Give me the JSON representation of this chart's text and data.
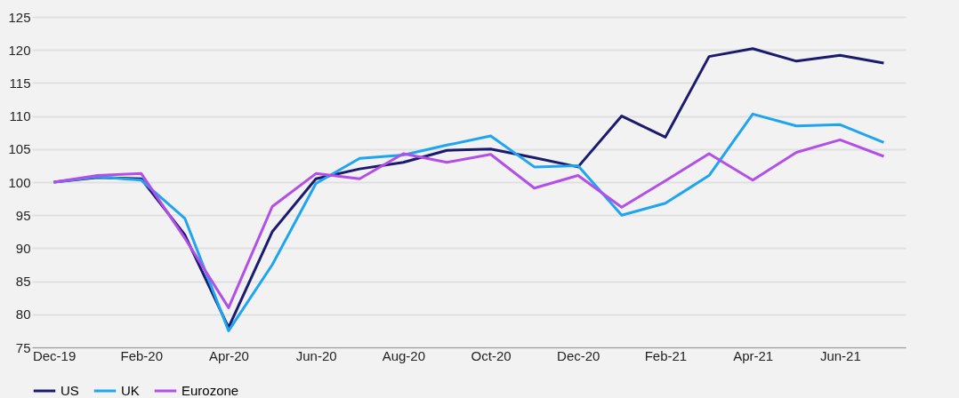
{
  "chart_data": {
    "type": "line",
    "categories": [
      "Dec-19",
      null,
      "Feb-20",
      null,
      "Apr-20",
      null,
      "Jun-20",
      null,
      "Aug-20",
      null,
      "Oct-20",
      null,
      "Dec-20",
      null,
      "Feb-21",
      null,
      "Apr-21",
      null,
      "Jun-21",
      null
    ],
    "series": [
      {
        "name": "US",
        "color": "#1a1a6e",
        "values": [
          100,
          100.7,
          100.5,
          92,
          78,
          92.5,
          100.5,
          102,
          103,
          104.8,
          105,
          103.7,
          102.3,
          110,
          106.8,
          119,
          120.2,
          118.3,
          119.2,
          118
        ]
      },
      {
        "name": "UK",
        "color": "#1fa5f0",
        "values": [
          100,
          100.8,
          100.3,
          94.5,
          77.5,
          87.5,
          99.8,
          103.6,
          104.1,
          105.6,
          107,
          102.3,
          102.5,
          95,
          96.8,
          101,
          110.3,
          108.5,
          108.7,
          106
        ]
      },
      {
        "name": "Eurozone",
        "color": "#b34fe8",
        "values": [
          100,
          101,
          101.3,
          91.5,
          81,
          96.3,
          101.3,
          100.5,
          104.3,
          103,
          104.2,
          99.1,
          101,
          96.2,
          100.2,
          104.3,
          100.3,
          104.5,
          106.4,
          103.9
        ]
      }
    ],
    "ylim": [
      75,
      125
    ],
    "yticks": [
      75,
      80,
      85,
      90,
      95,
      100,
      105,
      110,
      115,
      120,
      125
    ],
    "grid": "y",
    "legend": "bottom",
    "line_style": "solid",
    "marker": "none"
  }
}
